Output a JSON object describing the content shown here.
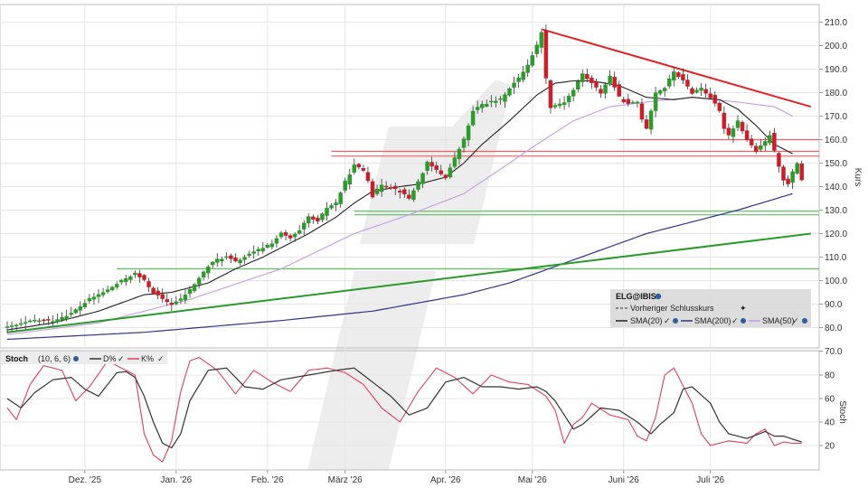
{
  "colors": {
    "bull": "#2e9a2e",
    "bear": "#c8202b",
    "sma20": "#222222",
    "sma200": "#33338a",
    "sma50": "#c79ae6",
    "trend_red": "#e02424",
    "trend_green": "#2a9a2a",
    "hline_red": "#f06060",
    "hline_green": "#5fbf5f",
    "stoch_d": "#333333",
    "stoch_k": "#e0405a",
    "grid": "#e6e6e6",
    "watermark": "#e4e4e4"
  },
  "chart_data": [
    {
      "type": "candlestick",
      "ylabel": "Kurs",
      "ylim": [
        65,
        213
      ],
      "y_ticks": [
        "210.0",
        "200.0",
        "190.0",
        "180.0",
        "170.0",
        "160.0",
        "150.0",
        "140.0",
        "130.0",
        "120.0",
        "110.0",
        "100.0",
        "90.0",
        "80.0",
        "70.0"
      ],
      "x_tick_labels": [
        "Dez. '25",
        "Jan. '26",
        "Feb. '26",
        "März '26",
        "Apr. '26",
        "Mai '26",
        "Juni '26",
        "Juli '26"
      ],
      "grid": true,
      "legend": {
        "title": "ELG@IBIS",
        "prev_close_label": "Vorheriger Schlusskurs",
        "entries": [
          "SMA(20)",
          "SMA(200)",
          "SMA(50)"
        ],
        "placement": "bottom-right"
      },
      "anchors": {
        "close": [
          [
            0,
            80
          ],
          [
            6,
            83
          ],
          [
            10,
            83
          ],
          [
            14,
            86
          ],
          [
            18,
            92
          ],
          [
            22,
            96
          ],
          [
            26,
            101
          ],
          [
            28,
            103
          ],
          [
            30,
            100
          ],
          [
            32,
            95
          ],
          [
            34,
            92
          ],
          [
            36,
            90
          ],
          [
            38,
            92
          ],
          [
            40,
            96
          ],
          [
            42,
            101
          ],
          [
            44,
            106
          ],
          [
            46,
            109
          ],
          [
            48,
            110
          ],
          [
            50,
            108
          ],
          [
            52,
            110
          ],
          [
            54,
            112
          ],
          [
            56,
            114
          ],
          [
            58,
            116
          ],
          [
            60,
            120
          ],
          [
            62,
            118
          ],
          [
            64,
            121
          ],
          [
            66,
            127
          ],
          [
            68,
            125
          ],
          [
            70,
            131
          ],
          [
            72,
            133
          ],
          [
            74,
            142
          ],
          [
            76,
            149
          ],
          [
            78,
            147
          ],
          [
            79,
            143
          ],
          [
            80,
            136
          ],
          [
            82,
            141
          ],
          [
            84,
            140
          ],
          [
            86,
            138
          ],
          [
            88,
            135
          ],
          [
            90,
            142
          ],
          [
            92,
            150
          ],
          [
            94,
            147
          ],
          [
            96,
            144
          ],
          [
            98,
            152
          ],
          [
            100,
            160
          ],
          [
            102,
            172
          ],
          [
            104,
            175
          ],
          [
            106,
            176
          ],
          [
            108,
            177
          ],
          [
            110,
            182
          ],
          [
            112,
            186
          ],
          [
            114,
            192
          ],
          [
            116,
            200
          ],
          [
            117,
            206
          ],
          [
            118,
            186
          ],
          [
            119,
            174
          ],
          [
            122,
            176
          ],
          [
            124,
            181
          ],
          [
            126,
            188
          ],
          [
            128,
            184
          ],
          [
            130,
            180
          ],
          [
            132,
            187
          ],
          [
            134,
            178
          ],
          [
            136,
            175
          ],
          [
            138,
            176
          ],
          [
            139,
            169
          ],
          [
            140,
            165
          ],
          [
            142,
            180
          ],
          [
            144,
            182
          ],
          [
            146,
            189
          ],
          [
            148,
            185
          ],
          [
            150,
            180
          ],
          [
            152,
            182
          ],
          [
            154,
            178
          ],
          [
            156,
            172
          ],
          [
            157,
            165
          ],
          [
            158,
            162
          ],
          [
            160,
            168
          ],
          [
            162,
            160
          ],
          [
            164,
            155
          ],
          [
            166,
            159
          ],
          [
            167,
            162
          ],
          [
            168,
            155
          ],
          [
            170,
            143
          ],
          [
            171,
            141
          ],
          [
            172,
            146
          ],
          [
            173,
            150
          ],
          [
            174,
            143
          ]
        ]
      },
      "sma20": [
        [
          0,
          79
        ],
        [
          10,
          82
        ],
        [
          20,
          87
        ],
        [
          30,
          94
        ],
        [
          36,
          95
        ],
        [
          44,
          99
        ],
        [
          50,
          105
        ],
        [
          56,
          110
        ],
        [
          60,
          114
        ],
        [
          66,
          120
        ],
        [
          72,
          127
        ],
        [
          76,
          133
        ],
        [
          80,
          138
        ],
        [
          86,
          140
        ],
        [
          90,
          141
        ],
        [
          96,
          144
        ],
        [
          100,
          150
        ],
        [
          104,
          158
        ],
        [
          110,
          168
        ],
        [
          116,
          179
        ],
        [
          120,
          184
        ],
        [
          124,
          185
        ],
        [
          128,
          185
        ],
        [
          134,
          183
        ],
        [
          140,
          178
        ],
        [
          146,
          177
        ],
        [
          150,
          178
        ],
        [
          156,
          177
        ],
        [
          160,
          173
        ],
        [
          164,
          166
        ],
        [
          168,
          158
        ],
        [
          172,
          154
        ]
      ],
      "sma50": [
        [
          0,
          77
        ],
        [
          20,
          82
        ],
        [
          40,
          92
        ],
        [
          60,
          105
        ],
        [
          76,
          120
        ],
        [
          88,
          128
        ],
        [
          100,
          137
        ],
        [
          110,
          150
        ],
        [
          116,
          158
        ],
        [
          124,
          168
        ],
        [
          132,
          174
        ],
        [
          140,
          176
        ],
        [
          150,
          178
        ],
        [
          160,
          176
        ],
        [
          168,
          174
        ],
        [
          172,
          170
        ]
      ],
      "sma200": [
        [
          0,
          75
        ],
        [
          30,
          78
        ],
        [
          60,
          83
        ],
        [
          80,
          87
        ],
        [
          100,
          94
        ],
        [
          110,
          99
        ],
        [
          120,
          106
        ],
        [
          130,
          113
        ],
        [
          140,
          120
        ],
        [
          150,
          125
        ],
        [
          160,
          130
        ],
        [
          172,
          137
        ]
      ],
      "trend_red": [
        [
          117,
          207
        ],
        [
          176,
          174
        ]
      ],
      "trend_green": [
        [
          0,
          78
        ],
        [
          176,
          120
        ]
      ],
      "hlines_red": [
        {
          "y": 155,
          "from": 71
        },
        {
          "y": 153,
          "from": 71
        },
        {
          "y": 160,
          "from": 134
        }
      ],
      "hlines_green": [
        {
          "y": 129.5,
          "from": 76
        },
        {
          "y": 128,
          "from": 76
        },
        {
          "y": 105,
          "from": 24
        }
      ]
    },
    {
      "type": "line",
      "title": "Stoch",
      "params": "(10, 6, 6)",
      "ylabel": "Stoch",
      "ylim": [
        2,
        96
      ],
      "y_ticks": [
        "80",
        "60",
        "40",
        "20"
      ],
      "series": [
        {
          "name": "D%",
          "anchors": [
            [
              0,
              60
            ],
            [
              3,
              52
            ],
            [
              6,
              65
            ],
            [
              10,
              76
            ],
            [
              14,
              78
            ],
            [
              17,
              68
            ],
            [
              20,
              62
            ],
            [
              24,
              82
            ],
            [
              26,
              83
            ],
            [
              28,
              78
            ],
            [
              30,
              62
            ],
            [
              32,
              40
            ],
            [
              34,
              22
            ],
            [
              36,
              18
            ],
            [
              38,
              30
            ],
            [
              40,
              58
            ],
            [
              44,
              84
            ],
            [
              48,
              86
            ],
            [
              52,
              70
            ],
            [
              56,
              68
            ],
            [
              60,
              76
            ],
            [
              66,
              80
            ],
            [
              72,
              84
            ],
            [
              76,
              86
            ],
            [
              80,
              74
            ],
            [
              84,
              62
            ],
            [
              88,
              46
            ],
            [
              92,
              52
            ],
            [
              96,
              74
            ],
            [
              100,
              78
            ],
            [
              104,
              70
            ],
            [
              108,
              70
            ],
            [
              112,
              68
            ],
            [
              116,
              70
            ],
            [
              118,
              66
            ],
            [
              120,
              58
            ],
            [
              124,
              34
            ],
            [
              126,
              38
            ],
            [
              130,
              52
            ],
            [
              134,
              50
            ],
            [
              138,
              40
            ],
            [
              141,
              30
            ],
            [
              143,
              38
            ],
            [
              146,
              48
            ],
            [
              148,
              68
            ],
            [
              150,
              70
            ],
            [
              154,
              56
            ],
            [
              156,
              40
            ],
            [
              158,
              30
            ],
            [
              162,
              26
            ],
            [
              166,
              32
            ],
            [
              168,
              28
            ],
            [
              170,
              28
            ],
            [
              174,
              23
            ]
          ]
        },
        {
          "name": "K%",
          "anchors": [
            [
              0,
              52
            ],
            [
              2,
              42
            ],
            [
              5,
              72
            ],
            [
              8,
              88
            ],
            [
              12,
              84
            ],
            [
              15,
              58
            ],
            [
              18,
              70
            ],
            [
              22,
              92
            ],
            [
              24,
              88
            ],
            [
              26,
              84
            ],
            [
              28,
              80
            ],
            [
              30,
              30
            ],
            [
              32,
              12
            ],
            [
              34,
              6
            ],
            [
              36,
              24
            ],
            [
              38,
              66
            ],
            [
              40,
              92
            ],
            [
              42,
              95
            ],
            [
              46,
              84
            ],
            [
              50,
              64
            ],
            [
              54,
              84
            ],
            [
              58,
              74
            ],
            [
              62,
              66
            ],
            [
              66,
              84
            ],
            [
              70,
              86
            ],
            [
              74,
              82
            ],
            [
              78,
              72
            ],
            [
              82,
              52
            ],
            [
              86,
              40
            ],
            [
              90,
              66
            ],
            [
              94,
              86
            ],
            [
              98,
              78
            ],
            [
              102,
              64
            ],
            [
              106,
              80
            ],
            [
              110,
              74
            ],
            [
              114,
              72
            ],
            [
              118,
              62
            ],
            [
              120,
              50
            ],
            [
              122,
              22
            ],
            [
              124,
              38
            ],
            [
              126,
              44
            ],
            [
              128,
              56
            ],
            [
              132,
              46
            ],
            [
              136,
              42
            ],
            [
              138,
              28
            ],
            [
              140,
              24
            ],
            [
              142,
              44
            ],
            [
              144,
              80
            ],
            [
              146,
              86
            ],
            [
              150,
              56
            ],
            [
              152,
              30
            ],
            [
              154,
              20
            ],
            [
              158,
              24
            ],
            [
              162,
              22
            ],
            [
              164,
              30
            ],
            [
              166,
              34
            ],
            [
              168,
              20
            ],
            [
              170,
              23
            ],
            [
              172,
              22
            ],
            [
              174,
              22
            ]
          ]
        }
      ]
    }
  ]
}
